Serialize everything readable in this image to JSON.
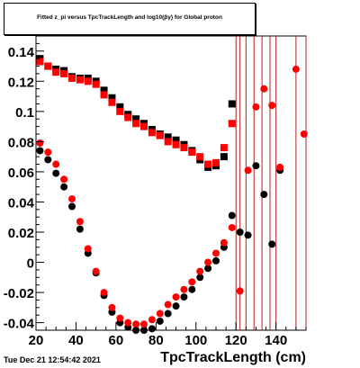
{
  "chart_data": {
    "type": "scatter",
    "title": "Fitted  z_pi  versus TpcTrackLength and log10(βγ) for Global proton",
    "xlabel": "TpcTrackLength (cm)",
    "ylabel": "",
    "xlim": [
      20,
      155
    ],
    "ylim": [
      -0.045,
      0.15
    ],
    "x_ticks": [
      20,
      40,
      60,
      80,
      100,
      120,
      140
    ],
    "y_ticks": [
      -0.04,
      -0.02,
      0,
      0.02,
      0.04,
      0.06,
      0.08,
      0.1,
      0.12,
      0.14
    ],
    "x_tick_labels": [
      "20",
      "40",
      "60",
      "80",
      "100",
      "120",
      "140"
    ],
    "y_tick_labels": [
      "-0.04",
      "-0.02",
      "0",
      "0.02",
      "0.04",
      "0.06",
      "0.08",
      "0.1",
      "0.12",
      "0.14"
    ],
    "vlines": [
      120,
      122,
      125,
      129,
      133,
      137,
      140,
      150,
      155
    ],
    "series": [
      {
        "marker": "square",
        "color": "#000000",
        "x": [
          22,
          26,
          30,
          34,
          38,
          42,
          46,
          50,
          54,
          58,
          62,
          66,
          70,
          74,
          78,
          82,
          86,
          90,
          94,
          98,
          102,
          106,
          110,
          114,
          118
        ],
        "y": [
          0.135,
          0.13,
          0.128,
          0.127,
          0.123,
          0.122,
          0.122,
          0.12,
          0.114,
          0.109,
          0.103,
          0.098,
          0.095,
          0.092,
          0.088,
          0.085,
          0.083,
          0.081,
          0.078,
          0.074,
          0.068,
          0.063,
          0.064,
          0.07,
          0.105
        ]
      },
      {
        "marker": "square",
        "color": "#ff0000",
        "x": [
          22,
          26,
          30,
          34,
          38,
          42,
          46,
          50,
          54,
          58,
          62,
          66,
          70,
          74,
          78,
          82,
          86,
          90,
          94,
          98,
          102,
          106,
          110,
          114,
          118
        ],
        "y": [
          0.133,
          0.13,
          0.126,
          0.125,
          0.122,
          0.121,
          0.12,
          0.118,
          0.111,
          0.106,
          0.1,
          0.096,
          0.092,
          0.09,
          0.086,
          0.084,
          0.08,
          0.078,
          0.076,
          0.073,
          0.07,
          0.065,
          0.066,
          0.076,
          0.092
        ]
      },
      {
        "marker": "circle",
        "color": "#000000",
        "x": [
          22,
          26,
          30,
          34,
          38,
          42,
          46,
          50,
          54,
          58,
          62,
          66,
          70,
          74,
          78,
          82,
          86,
          90,
          94,
          98,
          102,
          106,
          110,
          114,
          118,
          122,
          126,
          130,
          134,
          138,
          142
        ],
        "y": [
          0.074,
          0.068,
          0.059,
          0.05,
          0.037,
          0.022,
          0.006,
          -0.007,
          -0.022,
          -0.033,
          -0.04,
          -0.043,
          -0.045,
          -0.045,
          -0.044,
          -0.039,
          -0.034,
          -0.029,
          -0.023,
          -0.018,
          -0.01,
          -0.004,
          0.001,
          0.01,
          0.031,
          0.02,
          0.018,
          0.064,
          0.045,
          0.012,
          0.061
        ]
      },
      {
        "marker": "circle",
        "color": "#ff0000",
        "x": [
          22,
          26,
          30,
          34,
          38,
          42,
          46,
          50,
          54,
          58,
          62,
          66,
          70,
          74,
          78,
          82,
          86,
          90,
          94,
          98,
          102,
          106,
          110,
          114,
          118,
          122,
          126,
          130,
          134,
          138,
          142,
          150,
          154
        ],
        "y": [
          0.079,
          0.073,
          0.065,
          0.055,
          0.042,
          0.027,
          0.009,
          -0.006,
          -0.02,
          -0.03,
          -0.037,
          -0.04,
          -0.041,
          -0.041,
          -0.038,
          -0.034,
          -0.028,
          -0.023,
          -0.018,
          -0.013,
          -0.006,
          0.0,
          0.006,
          0.013,
          0.023,
          -0.019,
          0.061,
          0.103,
          0.115,
          0.104,
          0.063,
          0.128,
          0.085
        ]
      }
    ],
    "legend": "none",
    "grid": false
  },
  "meta": {
    "datestamp": "Tue Dec 21 12:54:42 2021"
  },
  "colors": {
    "black": "#000000",
    "red": "#ff0000",
    "vline": "#b22222"
  }
}
